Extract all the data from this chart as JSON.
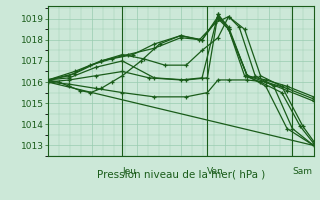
{
  "bg_color": "#cce8d8",
  "grid_color": "#99ccb0",
  "line_color": "#1a5c1a",
  "xlabel": "Pression niveau de la mer( hPa )",
  "ylim": [
    1012.5,
    1019.6
  ],
  "yticks": [
    1013,
    1014,
    1015,
    1016,
    1017,
    1018,
    1019
  ],
  "xlim": [
    0.0,
    1.0
  ],
  "day_labels": [
    "Jeu",
    "Ven",
    "Sam"
  ],
  "day_positions": [
    0.28,
    0.6,
    0.92
  ],
  "lines": [
    {
      "x": [
        0.0,
        0.04,
        0.08,
        0.12,
        0.16,
        0.2,
        0.24,
        0.28,
        0.35,
        0.42,
        0.5,
        0.57,
        0.63,
        0.68,
        0.72,
        0.78,
        0.85,
        0.92,
        1.0
      ],
      "y": [
        1016.1,
        1016.0,
        1015.8,
        1015.6,
        1015.5,
        1015.7,
        1016.0,
        1016.3,
        1017.0,
        1017.8,
        1018.2,
        1018.0,
        1018.8,
        1019.1,
        1018.6,
        1016.3,
        1015.8,
        1013.8,
        1013.0
      ]
    },
    {
      "x": [
        0.0,
        0.08,
        0.16,
        0.24,
        0.32,
        0.4,
        0.5,
        0.58,
        0.64,
        0.68,
        0.75,
        0.82,
        0.9,
        1.0
      ],
      "y": [
        1016.1,
        1016.3,
        1016.8,
        1017.1,
        1017.3,
        1017.8,
        1018.2,
        1018.0,
        1019.0,
        1018.5,
        1016.3,
        1015.8,
        1013.8,
        1013.0
      ]
    },
    {
      "x": [
        0.0,
        0.1,
        0.2,
        0.3,
        0.4,
        0.5,
        0.58,
        0.64,
        0.68,
        0.74,
        0.8,
        0.88,
        0.95,
        1.0
      ],
      "y": [
        1016.1,
        1016.5,
        1017.0,
        1017.3,
        1017.6,
        1018.1,
        1018.0,
        1019.1,
        1018.5,
        1016.3,
        1016.0,
        1015.5,
        1013.9,
        1013.1
      ]
    },
    {
      "x": [
        0.0,
        0.08,
        0.18,
        0.28,
        0.4,
        0.52,
        0.6,
        0.64,
        0.68,
        0.75,
        0.82,
        0.9,
        1.0
      ],
      "y": [
        1016.1,
        1016.2,
        1016.7,
        1017.0,
        1016.2,
        1016.1,
        1016.2,
        1019.2,
        1018.6,
        1016.3,
        1016.1,
        1015.8,
        1015.3
      ]
    },
    {
      "x": [
        0.0,
        0.08,
        0.18,
        0.28,
        0.38,
        0.5,
        0.58,
        0.64,
        0.68,
        0.75,
        0.82,
        0.9,
        1.0
      ],
      "y": [
        1016.0,
        1016.1,
        1016.3,
        1016.5,
        1016.2,
        1016.1,
        1016.2,
        1019.2,
        1018.5,
        1016.3,
        1016.0,
        1015.6,
        1015.1
      ]
    },
    {
      "x": [
        0.0,
        0.08,
        0.18,
        0.28,
        0.4,
        0.52,
        0.6,
        0.64,
        0.68,
        0.75,
        0.82,
        0.9,
        1.0
      ],
      "y": [
        1016.0,
        1015.9,
        1015.7,
        1015.5,
        1015.3,
        1015.3,
        1015.5,
        1016.1,
        1016.1,
        1016.1,
        1016.0,
        1015.7,
        1015.2
      ]
    },
    {
      "x": [
        0.0,
        1.0
      ],
      "y": [
        1016.0,
        1013.0
      ]
    },
    {
      "x": [
        0.0,
        0.1,
        0.2,
        0.28,
        0.36,
        0.44,
        0.52,
        0.58,
        0.64,
        0.68,
        0.74,
        0.8,
        0.88,
        0.96,
        1.0
      ],
      "y": [
        1016.1,
        1016.4,
        1017.0,
        1017.3,
        1017.1,
        1016.8,
        1016.8,
        1017.5,
        1018.1,
        1019.1,
        1018.5,
        1016.3,
        1015.8,
        1013.9,
        1013.2
      ]
    }
  ]
}
